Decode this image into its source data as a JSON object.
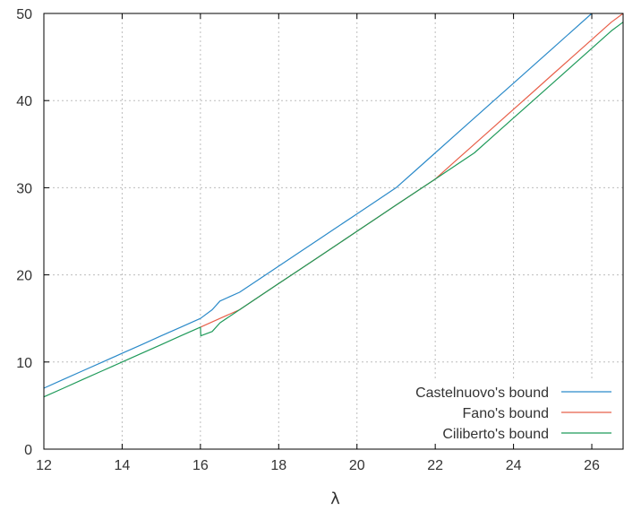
{
  "chart_data": {
    "type": "line",
    "title": "",
    "xlabel": "λ",
    "ylabel": "",
    "xlim": [
      12,
      26.8
    ],
    "ylim": [
      0,
      50
    ],
    "xticks": [
      12,
      14,
      16,
      18,
      20,
      22,
      24,
      26
    ],
    "yticks": [
      0,
      10,
      20,
      30,
      40,
      50
    ],
    "grid": true,
    "legend_position": "bottom-right",
    "series": [
      {
        "name": "Castelnuovo's bound",
        "color": "#2b8ac9",
        "x": [
          12,
          12.5,
          13,
          13.5,
          14,
          14.5,
          15,
          15.5,
          16,
          16.3,
          16.5,
          17,
          17.5,
          18,
          18.5,
          19,
          19.5,
          20,
          20.5,
          21,
          21.5,
          22,
          22.5,
          23,
          23.5,
          24,
          24.5,
          25,
          25.5,
          26
        ],
        "y": [
          7,
          8,
          9,
          10,
          11,
          12,
          13,
          14,
          15,
          16,
          17,
          18,
          19.5,
          21,
          22.5,
          24,
          25.5,
          27,
          28.5,
          30,
          32,
          34,
          36,
          38,
          40,
          42,
          44,
          46,
          48,
          50
        ]
      },
      {
        "name": "Fano's bound",
        "color": "#e8604a",
        "x": [
          16,
          16.5,
          17,
          17.5,
          18,
          18.5,
          19,
          19.5,
          20,
          20.5,
          21,
          21.5,
          22,
          22.5,
          23,
          23.5,
          24,
          24.5,
          25,
          25.5,
          26,
          26.5,
          26.8
        ],
        "y": [
          14,
          15,
          16,
          17.5,
          19,
          20.5,
          22,
          23.5,
          25,
          26.5,
          28,
          29.5,
          31,
          33,
          35,
          37,
          39,
          41,
          43,
          45,
          47,
          49,
          50
        ]
      },
      {
        "name": "Ciliberto's bound",
        "color": "#1f9a5a",
        "x": [
          12,
          12.5,
          13,
          13.5,
          14,
          14.5,
          15,
          15.5,
          16,
          16.01,
          16.3,
          16.5,
          17,
          17.5,
          18,
          18.5,
          19,
          19.5,
          20,
          20.5,
          21,
          21.5,
          22,
          22.5,
          23,
          23.5,
          24,
          24.5,
          25,
          25.5,
          26,
          26.5,
          26.8
        ],
        "y": [
          6,
          7,
          8,
          9,
          10,
          11,
          12,
          13,
          14,
          13,
          13.5,
          14.5,
          16,
          17.5,
          19,
          20.5,
          22,
          23.5,
          25,
          26.5,
          28,
          29.5,
          31,
          32.5,
          34,
          36,
          38,
          40,
          42,
          44,
          46,
          48,
          49
        ]
      }
    ]
  }
}
